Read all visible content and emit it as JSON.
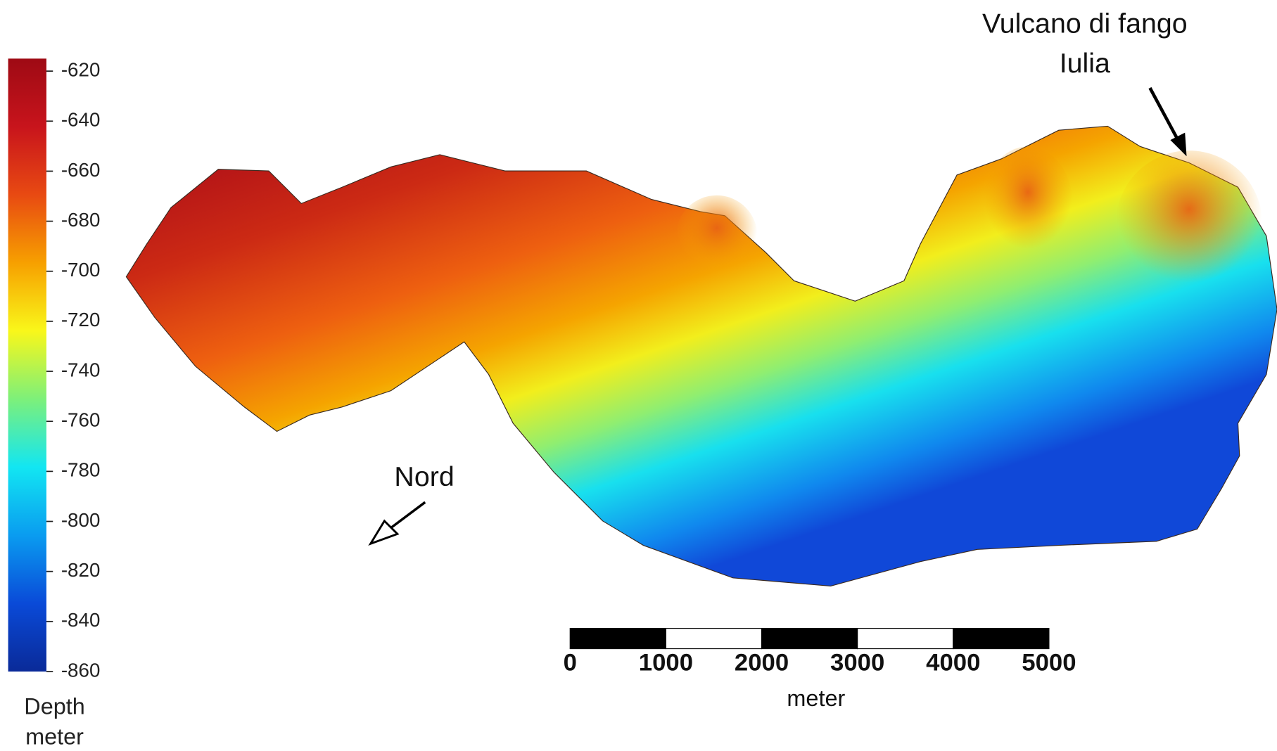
{
  "colorbar": {
    "range": [
      -615,
      -860
    ],
    "ticks": [
      -620,
      -640,
      -660,
      -680,
      -700,
      -720,
      -740,
      -760,
      -780,
      -800,
      -820,
      -840,
      -860
    ],
    "label": [
      "Depth",
      "meter"
    ],
    "colors": [
      "#9e0a14",
      "#c8141c",
      "#e84a12",
      "#f7a000",
      "#f9f71a",
      "#7df07a",
      "#12e6f2",
      "#0a9cf0",
      "#0a4ad8",
      "#0a2a98"
    ]
  },
  "scale_bar": {
    "range": [
      0,
      5000
    ],
    "ticks": [
      0,
      1000,
      2000,
      3000,
      4000,
      5000
    ],
    "unit": "meter"
  },
  "annotations": {
    "volcano": [
      "Vulcano di fango",
      "Iulia"
    ],
    "north": "Nord"
  }
}
